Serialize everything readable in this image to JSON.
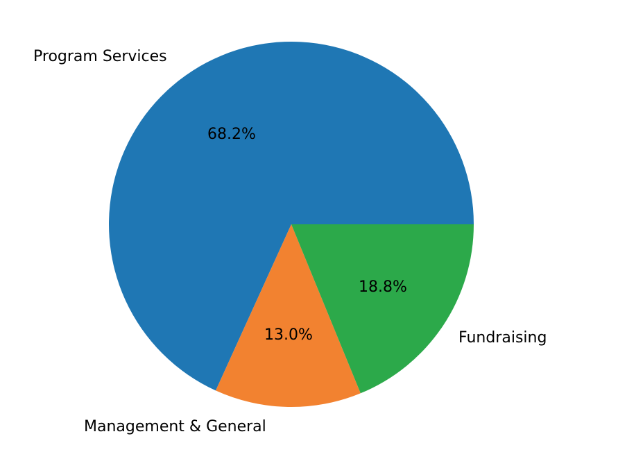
{
  "chart_data": {
    "type": "pie",
    "title": "",
    "start_angle_deg": 0,
    "direction": "counterclockwise",
    "slices": [
      {
        "label": "Program Services",
        "value": 68.2,
        "pct_label": "68.2%",
        "color": "#1f77b4"
      },
      {
        "label": "Management & General",
        "value": 13.0,
        "pct_label": "13.0%",
        "color": "#f28230"
      },
      {
        "label": "Fundraising",
        "value": 18.8,
        "pct_label": "18.8%",
        "color": "#2ca94a"
      }
    ]
  }
}
